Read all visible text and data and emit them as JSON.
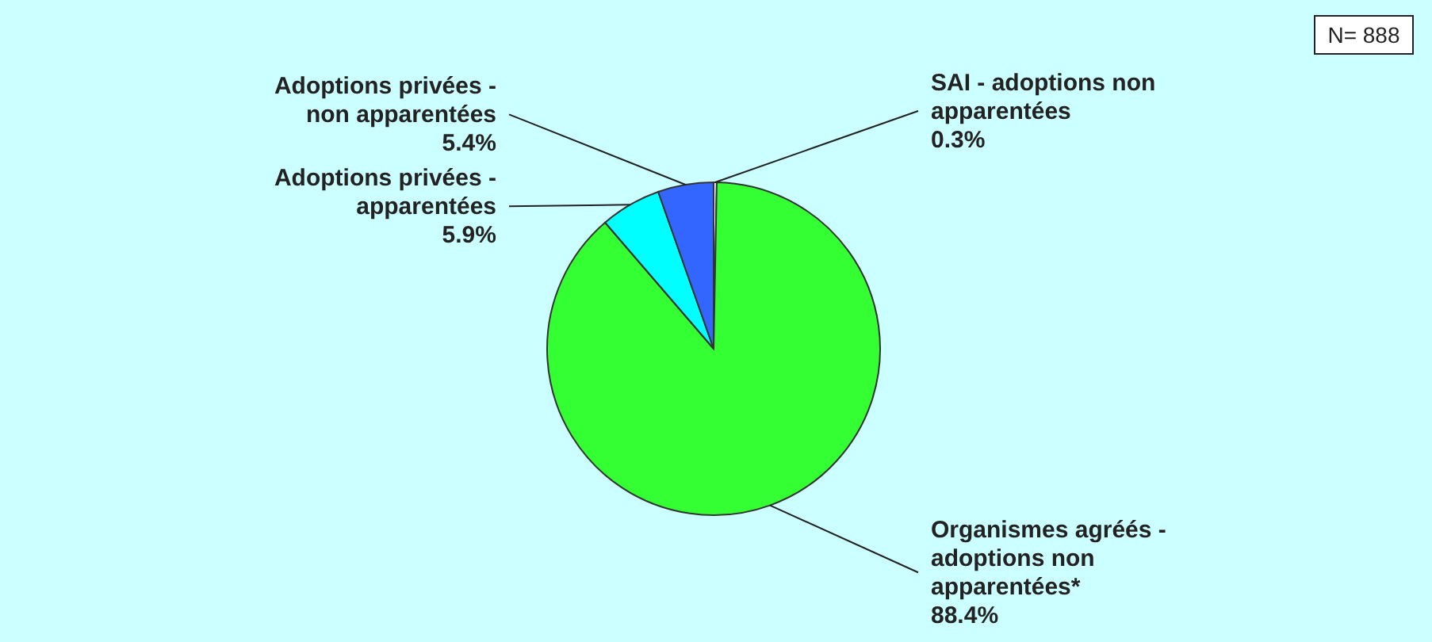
{
  "chart_data": {
    "type": "pie",
    "categories": [
      "SAI - adoptions non apparentées",
      "Organismes agréés - adoptions non apparentées*",
      "Adoptions privées - apparentées",
      "Adoptions privées - non apparentées"
    ],
    "values": [
      0.3,
      88.4,
      5.9,
      5.4
    ],
    "colors": [
      "#ffffff",
      "#33ff33",
      "#00ffff",
      "#3366ff"
    ],
    "value_labels": [
      "0.3%",
      "88.4%",
      "5.9%",
      "5.4%"
    ],
    "annotations": [
      "N= 888"
    ]
  }
}
